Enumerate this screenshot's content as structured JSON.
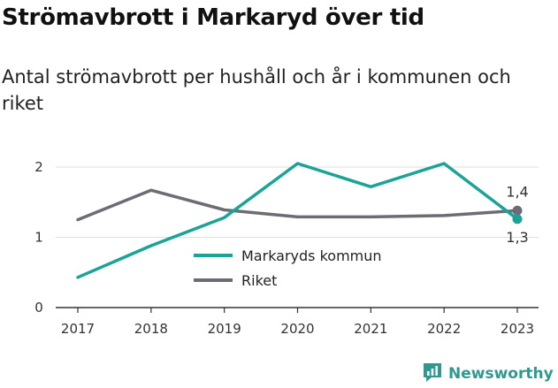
{
  "header": {
    "title": "Strömavbrott i Markaryd över tid",
    "subtitle": "Antal strömavbrott per hushåll och år i kommunen och riket"
  },
  "brand": {
    "name": "Newsworthy",
    "icon": "newsworthy-logo-icon",
    "color": "#2e9990"
  },
  "colors": {
    "teal": "#1aa396",
    "gray": "#6d6b74",
    "axis": "#333333",
    "grid": "#dddddd"
  },
  "chart_data": {
    "type": "line",
    "title": "Strömavbrott i Markaryd över tid",
    "subtitle": "Antal strömavbrott per hushåll och år i kommunen och riket",
    "xlabel": "",
    "ylabel": "",
    "x": [
      "2017",
      "2018",
      "2019",
      "2020",
      "2021",
      "2022",
      "2023"
    ],
    "ylim": [
      0,
      2.1
    ],
    "yticks": [
      {
        "value": 0,
        "label": "0"
      },
      {
        "value": 1,
        "label": "1"
      },
      {
        "value": 2,
        "label": "2"
      }
    ],
    "grid": true,
    "legend_position": "center",
    "series": [
      {
        "name": "Markaryds kommun",
        "color": "#1aa396",
        "values": [
          0.43,
          0.88,
          1.28,
          2.05,
          1.72,
          2.05,
          1.26
        ],
        "end_label": "1,3"
      },
      {
        "name": "Riket",
        "color": "#6d6b74",
        "values": [
          1.25,
          1.67,
          1.39,
          1.29,
          1.29,
          1.31,
          1.38
        ],
        "end_label": "1,4"
      }
    ]
  }
}
